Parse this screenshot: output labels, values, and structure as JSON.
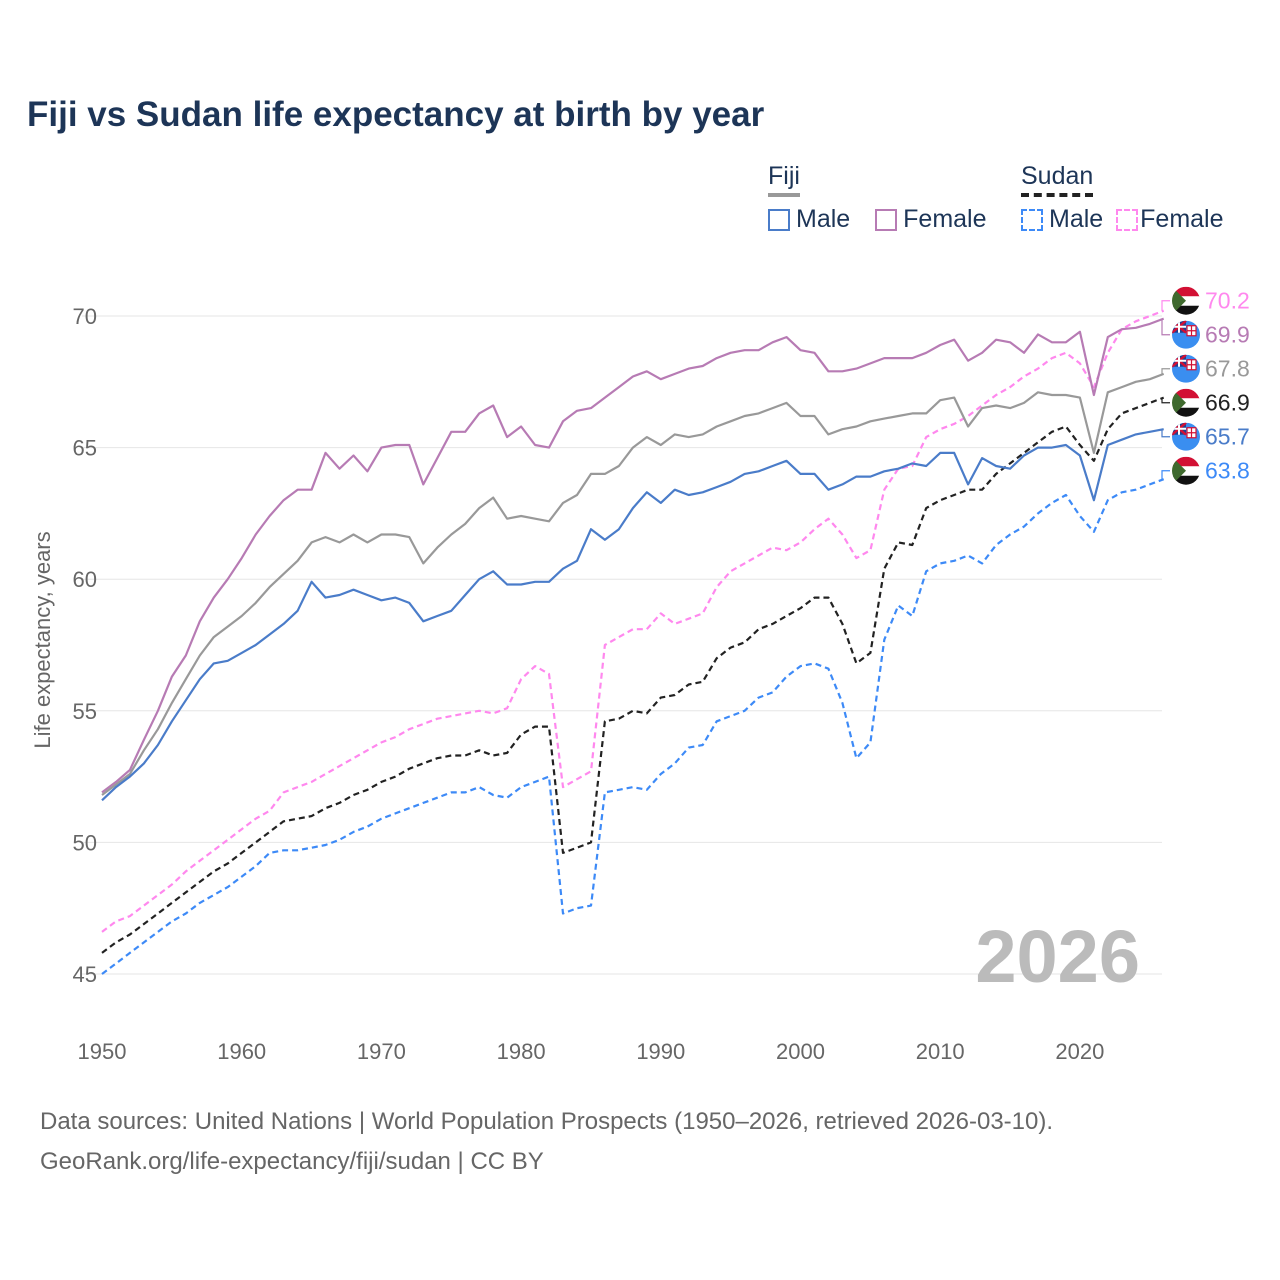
{
  "chart_data": {
    "type": "line",
    "title": "Fiji vs Sudan life expectancy at birth by year",
    "xlabel": "",
    "ylabel": "Life expectancy, years",
    "xlim": [
      1950,
      2026
    ],
    "ylim": [
      44,
      72
    ],
    "grid": true,
    "x_ticks": [
      "1950",
      "1960",
      "1970",
      "1980",
      "1990",
      "2000",
      "2010",
      "2020"
    ],
    "y_ticks": [
      "45",
      "50",
      "55",
      "60",
      "65",
      "70"
    ],
    "year_watermark": "2026",
    "legend": {
      "placement": "top-right",
      "groups": [
        {
          "name": "Fiji",
          "items": [
            "Male",
            "Female"
          ]
        },
        {
          "name": "Sudan",
          "items": [
            "Male",
            "Female"
          ]
        }
      ]
    },
    "series": [
      {
        "name": "Sudan Female",
        "country": "Sudan",
        "color": "#ff88ee",
        "dashed": true,
        "end_label": "70.2",
        "values": [
          46.6,
          47.0,
          47.2,
          47.6,
          48.0,
          48.4,
          48.9,
          49.3,
          49.7,
          50.1,
          50.5,
          50.9,
          51.2,
          51.9,
          52.1,
          52.3,
          52.6,
          52.9,
          53.2,
          53.5,
          53.8,
          54.0,
          54.3,
          54.5,
          54.7,
          54.8,
          54.9,
          55.0,
          54.9,
          55.1,
          56.2,
          56.7,
          56.4,
          52.1,
          52.4,
          52.7,
          57.5,
          57.8,
          58.1,
          58.1,
          58.7,
          58.3,
          58.5,
          58.7,
          59.7,
          60.3,
          60.6,
          60.9,
          61.2,
          61.1,
          61.4,
          61.9,
          62.3,
          61.7,
          60.8,
          61.1,
          63.4,
          64.2,
          64.3,
          65.4,
          65.7,
          65.9,
          66.2,
          66.6,
          67.0,
          67.3,
          67.7,
          68.0,
          68.4,
          68.6,
          68.2,
          67.3,
          68.6,
          69.5,
          69.8,
          70.0,
          70.2
        ]
      },
      {
        "name": "Fiji Female",
        "country": "Fiji",
        "color": "#b77bb4",
        "dashed": false,
        "end_label": "69.9",
        "values": [
          51.9,
          52.3,
          52.75,
          53.9,
          55.0,
          56.3,
          57.1,
          58.4,
          59.3,
          60.0,
          60.8,
          61.7,
          62.4,
          63.0,
          63.4,
          63.4,
          64.8,
          64.2,
          64.7,
          64.1,
          65.0,
          65.1,
          65.1,
          63.6,
          64.6,
          65.6,
          65.6,
          66.3,
          66.6,
          65.4,
          65.8,
          65.1,
          65.0,
          66.0,
          66.4,
          66.5,
          66.9,
          67.3,
          67.7,
          67.9,
          67.6,
          67.8,
          68.0,
          68.1,
          68.4,
          68.6,
          68.7,
          68.7,
          69.0,
          69.2,
          68.7,
          68.6,
          67.9,
          67.9,
          68.0,
          68.2,
          68.4,
          68.4,
          68.4,
          68.6,
          68.9,
          69.1,
          68.3,
          68.6,
          69.1,
          69.0,
          68.6,
          69.3,
          69.0,
          69.0,
          69.4,
          67.0,
          69.2,
          69.5,
          69.55,
          69.7,
          69.9
        ]
      },
      {
        "name": "Fiji",
        "country": "Fiji",
        "color": "#999999",
        "dashed": false,
        "end_label": "67.8",
        "values": [
          51.8,
          52.2,
          52.6,
          53.5,
          54.3,
          55.3,
          56.2,
          57.1,
          57.8,
          58.2,
          58.6,
          59.1,
          59.7,
          60.2,
          60.7,
          61.4,
          61.6,
          61.4,
          61.7,
          61.4,
          61.7,
          61.7,
          61.6,
          60.6,
          61.2,
          61.7,
          62.1,
          62.7,
          63.1,
          62.3,
          62.4,
          62.3,
          62.2,
          62.9,
          63.2,
          64.0,
          64.0,
          64.3,
          65.0,
          65.4,
          65.1,
          65.5,
          65.4,
          65.5,
          65.8,
          66.0,
          66.2,
          66.3,
          66.5,
          66.7,
          66.2,
          66.2,
          65.5,
          65.7,
          65.8,
          66.0,
          66.1,
          66.2,
          66.3,
          66.3,
          66.8,
          66.9,
          65.8,
          66.5,
          66.6,
          66.5,
          66.7,
          67.1,
          67.0,
          67.0,
          66.9,
          64.8,
          67.1,
          67.3,
          67.5,
          67.6,
          67.8
        ]
      },
      {
        "name": "Sudan",
        "country": "Sudan",
        "color": "#222222",
        "dashed": true,
        "end_label": "66.9",
        "values": [
          45.8,
          46.2,
          46.5,
          46.9,
          47.3,
          47.7,
          48.1,
          48.5,
          48.9,
          49.2,
          49.6,
          50.0,
          50.4,
          50.8,
          50.9,
          51.0,
          51.3,
          51.5,
          51.8,
          52.0,
          52.3,
          52.5,
          52.8,
          53.0,
          53.2,
          53.3,
          53.3,
          53.5,
          53.3,
          53.4,
          54.1,
          54.4,
          54.4,
          49.6,
          49.8,
          50.0,
          54.6,
          54.7,
          55.0,
          54.9,
          55.5,
          55.6,
          56.0,
          56.1,
          57.0,
          57.4,
          57.6,
          58.1,
          58.3,
          58.6,
          58.9,
          59.3,
          59.3,
          58.3,
          56.8,
          57.2,
          60.4,
          61.4,
          61.3,
          62.7,
          63.0,
          63.2,
          63.4,
          63.4,
          64.0,
          64.4,
          64.8,
          65.2,
          65.6,
          65.8,
          65.1,
          64.5,
          65.7,
          66.3,
          66.5,
          66.7,
          66.9
        ]
      },
      {
        "name": "Fiji Male",
        "country": "Fiji",
        "color": "#4a7cc9",
        "dashed": false,
        "end_label": "65.7",
        "values": [
          51.6,
          52.1,
          52.5,
          53.0,
          53.7,
          54.6,
          55.4,
          56.2,
          56.8,
          56.9,
          57.2,
          57.5,
          57.9,
          58.3,
          58.8,
          59.9,
          59.3,
          59.4,
          59.6,
          59.4,
          59.2,
          59.3,
          59.1,
          58.4,
          58.6,
          58.8,
          59.4,
          60.0,
          60.3,
          59.8,
          59.8,
          59.9,
          59.9,
          60.4,
          60.7,
          61.9,
          61.5,
          61.9,
          62.7,
          63.3,
          62.9,
          63.4,
          63.2,
          63.3,
          63.5,
          63.7,
          64.0,
          64.1,
          64.3,
          64.5,
          64.0,
          64.0,
          63.4,
          63.6,
          63.9,
          63.9,
          64.1,
          64.2,
          64.4,
          64.3,
          64.8,
          64.8,
          63.6,
          64.6,
          64.3,
          64.2,
          64.7,
          65.0,
          65.0,
          65.1,
          64.7,
          63.0,
          65.1,
          65.3,
          65.5,
          65.6,
          65.7
        ]
      },
      {
        "name": "Sudan Male",
        "country": "Sudan",
        "color": "#3d8af7",
        "dashed": true,
        "end_label": "63.8",
        "values": [
          45.0,
          45.4,
          45.8,
          46.2,
          46.6,
          47.0,
          47.3,
          47.7,
          48.0,
          48.3,
          48.7,
          49.1,
          49.6,
          49.7,
          49.7,
          49.8,
          49.9,
          50.1,
          50.4,
          50.6,
          50.9,
          51.1,
          51.3,
          51.5,
          51.7,
          51.9,
          51.9,
          52.1,
          51.8,
          51.7,
          52.1,
          52.3,
          52.5,
          47.3,
          47.5,
          47.6,
          51.9,
          52.0,
          52.1,
          52.0,
          52.6,
          53.0,
          53.6,
          53.7,
          54.6,
          54.8,
          55.0,
          55.5,
          55.7,
          56.3,
          56.7,
          56.8,
          56.6,
          55.3,
          53.2,
          53.8,
          57.7,
          59.0,
          58.6,
          60.3,
          60.6,
          60.7,
          60.9,
          60.6,
          61.3,
          61.7,
          62.0,
          62.5,
          62.9,
          63.2,
          62.4,
          61.8,
          63.0,
          63.3,
          63.4,
          63.6,
          63.8
        ]
      }
    ]
  },
  "legend_colors": {
    "fiji_male": "#4a7cc9",
    "fiji_female": "#b77bb4",
    "sudan_male": "#3d8af7",
    "sudan_female": "#ff88ee"
  },
  "footer": {
    "line1": "Data sources: United Nations | World Population Prospects (1950–2026, retrieved 2026-03-10).",
    "line2": "GeoRank.org/life-expectancy/fiji/sudan | CC BY"
  }
}
